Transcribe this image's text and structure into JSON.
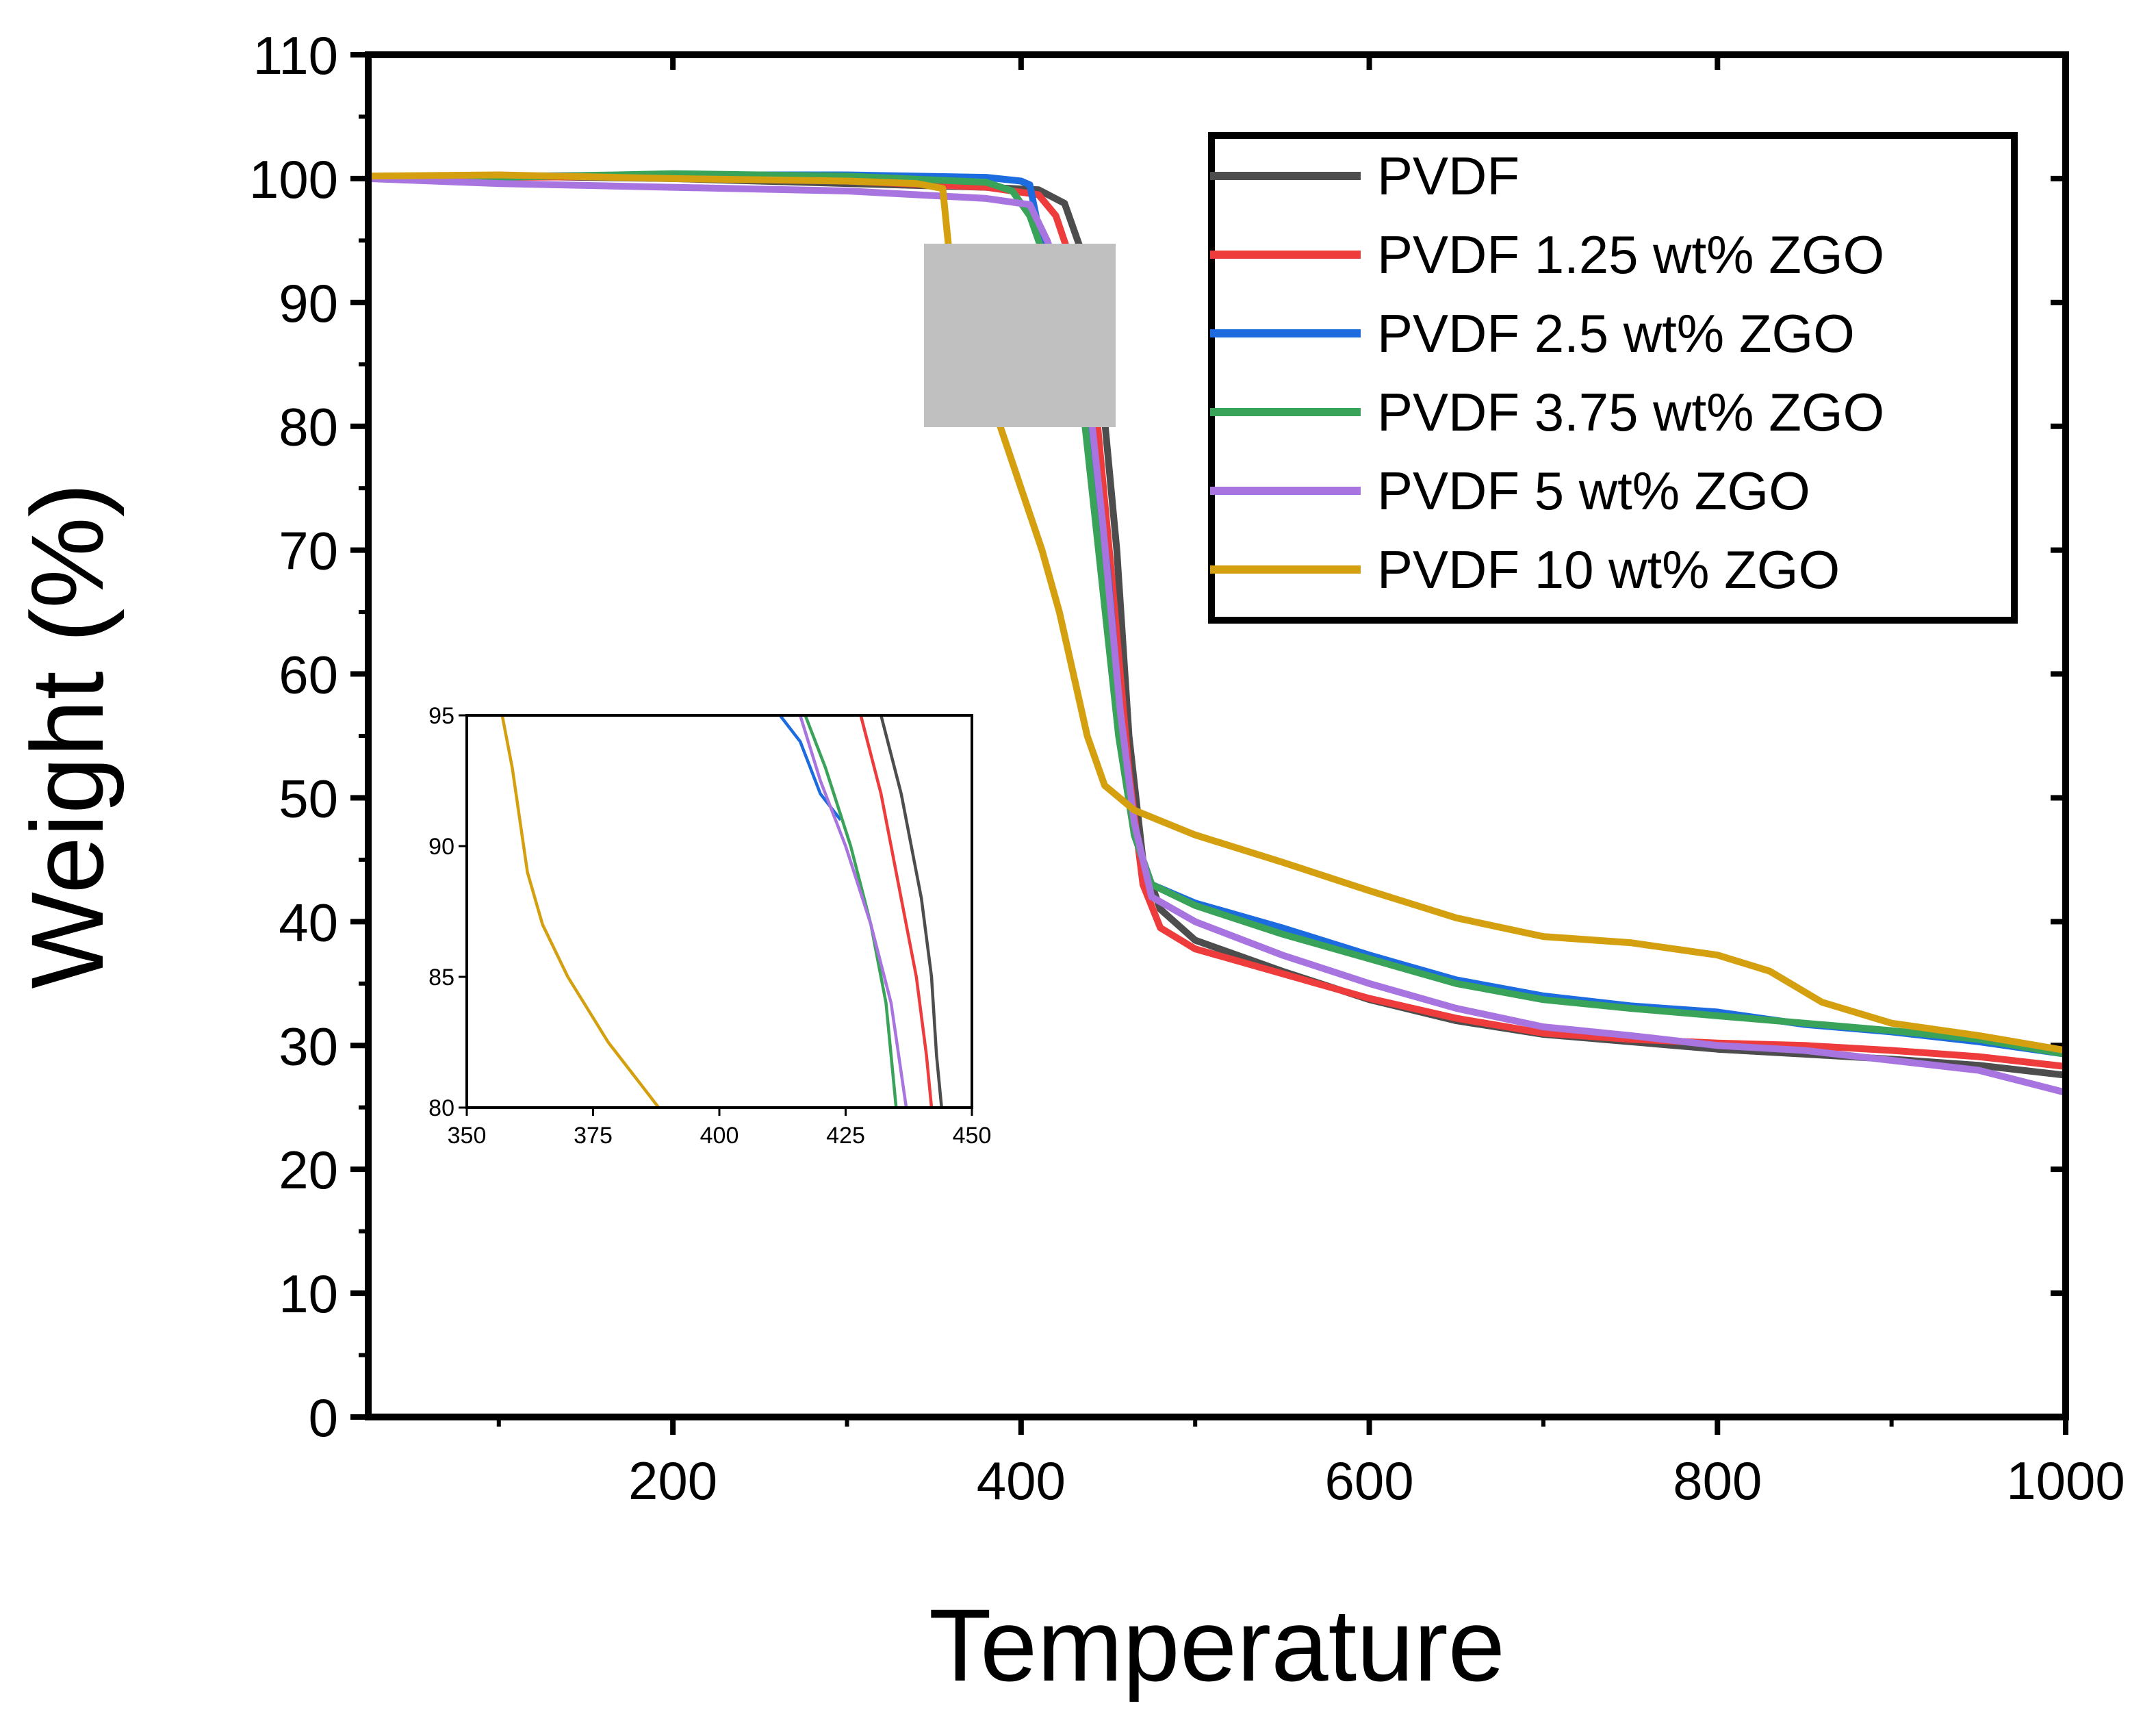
{
  "chart_data": {
    "type": "line",
    "xlabel": "Temperature",
    "ylabel": "Weight (%)",
    "xlim": [
      25,
      1000
    ],
    "ylim": [
      0,
      110
    ],
    "xticks": [
      200,
      400,
      600,
      800,
      1000
    ],
    "yticks": [
      0,
      10,
      20,
      30,
      40,
      50,
      60,
      70,
      80,
      90,
      100,
      110
    ],
    "grid": false,
    "legend_position": "top-right",
    "series": [
      {
        "name": "PVDF",
        "color": "#4d4d4d",
        "points": [
          [
            25,
            100
          ],
          [
            100,
            100.2
          ],
          [
            200,
            100
          ],
          [
            300,
            99.6
          ],
          [
            380,
            99.3
          ],
          [
            410,
            99.1
          ],
          [
            425,
            98
          ],
          [
            435,
            94
          ],
          [
            445,
            85
          ],
          [
            455,
            70
          ],
          [
            462,
            55
          ],
          [
            470,
            45
          ],
          [
            480,
            41
          ],
          [
            500,
            38.5
          ],
          [
            550,
            36
          ],
          [
            600,
            33.7
          ],
          [
            650,
            32
          ],
          [
            700,
            30.9
          ],
          [
            750,
            30.3
          ],
          [
            800,
            29.7
          ],
          [
            850,
            29.3
          ],
          [
            900,
            28.9
          ],
          [
            950,
            28.4
          ],
          [
            1000,
            27.6
          ]
        ]
      },
      {
        "name": "PVDF 1.25 wt% ZGO",
        "color": "#ee3b3b",
        "points": [
          [
            25,
            100
          ],
          [
            100,
            100.1
          ],
          [
            200,
            100.2
          ],
          [
            300,
            99.8
          ],
          [
            380,
            99.3
          ],
          [
            410,
            98.7
          ],
          [
            420,
            97
          ],
          [
            432,
            92
          ],
          [
            442,
            83
          ],
          [
            452,
            68
          ],
          [
            462,
            52
          ],
          [
            470,
            43
          ],
          [
            480,
            39.5
          ],
          [
            500,
            37.8
          ],
          [
            550,
            35.8
          ],
          [
            600,
            33.8
          ],
          [
            650,
            32.2
          ],
          [
            700,
            31
          ],
          [
            750,
            30.5
          ],
          [
            800,
            30.2
          ],
          [
            850,
            30
          ],
          [
            900,
            29.6
          ],
          [
            950,
            29.1
          ],
          [
            1000,
            28.3
          ]
        ]
      },
      {
        "name": "PVDF 2.5 wt% ZGO",
        "color": "#1c6ce0",
        "points": [
          [
            25,
            100
          ],
          [
            100,
            100.2
          ],
          [
            200,
            100.3
          ],
          [
            300,
            100.3
          ],
          [
            380,
            100.1
          ],
          [
            400,
            99.8
          ],
          [
            405,
            99.5
          ],
          [
            410,
            96
          ],
          [
            418,
            92
          ],
          [
            430,
            87
          ],
          [
            440,
            80
          ],
          [
            450,
            68
          ],
          [
            458,
            55
          ],
          [
            465,
            47
          ],
          [
            475,
            43
          ],
          [
            500,
            41.5
          ],
          [
            550,
            39.5
          ],
          [
            600,
            37.3
          ],
          [
            650,
            35.3
          ],
          [
            700,
            34
          ],
          [
            750,
            33.2
          ],
          [
            800,
            32.7
          ],
          [
            850,
            31.7
          ],
          [
            900,
            31.1
          ],
          [
            950,
            30.3
          ],
          [
            1000,
            29.3
          ]
        ]
      },
      {
        "name": "PVDF 3.75 wt% ZGO",
        "color": "#3aa35a",
        "points": [
          [
            25,
            100
          ],
          [
            100,
            100.1
          ],
          [
            200,
            100.4
          ],
          [
            300,
            100.2
          ],
          [
            380,
            99.7
          ],
          [
            395,
            99
          ],
          [
            405,
            97
          ],
          [
            415,
            93
          ],
          [
            428,
            89
          ],
          [
            436,
            81
          ],
          [
            446,
            68
          ],
          [
            456,
            55
          ],
          [
            465,
            47
          ],
          [
            475,
            43
          ],
          [
            500,
            41.3
          ],
          [
            550,
            39
          ],
          [
            600,
            37
          ],
          [
            650,
            35
          ],
          [
            700,
            33.7
          ],
          [
            750,
            33
          ],
          [
            800,
            32.4
          ],
          [
            850,
            31.8
          ],
          [
            900,
            31.2
          ],
          [
            950,
            30.5
          ],
          [
            1000,
            29.3
          ]
        ]
      },
      {
        "name": "PVDF 5 wt% ZGO",
        "color": "#a874e0",
        "points": [
          [
            25,
            100
          ],
          [
            100,
            99.6
          ],
          [
            200,
            99.3
          ],
          [
            300,
            99
          ],
          [
            380,
            98.4
          ],
          [
            405,
            97.9
          ],
          [
            415,
            95
          ],
          [
            425,
            91
          ],
          [
            437,
            85
          ],
          [
            447,
            72
          ],
          [
            457,
            57
          ],
          [
            465,
            48
          ],
          [
            475,
            42
          ],
          [
            500,
            40
          ],
          [
            550,
            37.3
          ],
          [
            600,
            35
          ],
          [
            650,
            33
          ],
          [
            700,
            31.5
          ],
          [
            750,
            30.8
          ],
          [
            800,
            30
          ],
          [
            850,
            29.6
          ],
          [
            900,
            28.8
          ],
          [
            950,
            28
          ],
          [
            1000,
            26.2
          ]
        ]
      },
      {
        "name": "PVDF 10 wt% ZGO",
        "color": "#d4a010",
        "points": [
          [
            25,
            100.2
          ],
          [
            100,
            100.3
          ],
          [
            200,
            100
          ],
          [
            300,
            99.8
          ],
          [
            340,
            99.6
          ],
          [
            355,
            99.2
          ],
          [
            358,
            95
          ],
          [
            362,
            90
          ],
          [
            372,
            85
          ],
          [
            388,
            80
          ],
          [
            400,
            75
          ],
          [
            412,
            70
          ],
          [
            422,
            65
          ],
          [
            430,
            60
          ],
          [
            438,
            55
          ],
          [
            448,
            51
          ],
          [
            465,
            49
          ],
          [
            500,
            47
          ],
          [
            550,
            44.8
          ],
          [
            600,
            42.5
          ],
          [
            650,
            40.3
          ],
          [
            700,
            38.8
          ],
          [
            750,
            38.3
          ],
          [
            800,
            37.3
          ],
          [
            830,
            36
          ],
          [
            860,
            33.5
          ],
          [
            900,
            31.8
          ],
          [
            950,
            30.8
          ],
          [
            1000,
            29.6
          ]
        ]
      }
    ],
    "inset": {
      "xlim": [
        350,
        450
      ],
      "ylim": [
        80,
        95
      ],
      "xticks": [
        350,
        375,
        400,
        425,
        450
      ],
      "yticks": [
        80,
        85,
        90,
        95
      ],
      "series": [
        {
          "name": "PVDF",
          "color": "#4d4d4d",
          "points": [
            [
              432,
              95
            ],
            [
              436,
              92
            ],
            [
              440,
              88
            ],
            [
              442,
              85
            ],
            [
              443,
              82
            ],
            [
              444,
              80
            ]
          ]
        },
        {
          "name": "PVDF 1.25 wt% ZGO",
          "color": "#ee3b3b",
          "points": [
            [
              428,
              95
            ],
            [
              432,
              92
            ],
            [
              436,
              88
            ],
            [
              439,
              85
            ],
            [
              441,
              82
            ],
            [
              442,
              80
            ]
          ]
        },
        {
          "name": "PVDF 2.5 wt% ZGO",
          "color": "#1c6ce0",
          "points": [
            [
              412,
              95
            ],
            [
              416,
              94
            ],
            [
              420,
              92
            ],
            [
              424,
              91
            ]
          ]
        },
        {
          "name": "PVDF 3.75 wt% ZGO",
          "color": "#3aa35a",
          "points": [
            [
              417,
              95
            ],
            [
              421,
              93
            ],
            [
              426,
              90
            ],
            [
              430,
              87
            ],
            [
              433,
              84
            ],
            [
              435,
              80
            ]
          ]
        },
        {
          "name": "PVDF 5 wt% ZGO",
          "color": "#a874e0",
          "points": [
            [
              416,
              95
            ],
            [
              420,
              92.5
            ],
            [
              425,
              90
            ],
            [
              430,
              87
            ],
            [
              434,
              84
            ],
            [
              437,
              80
            ]
          ]
        },
        {
          "name": "PVDF 10 wt% ZGO",
          "color": "#d4a010",
          "points": [
            [
              357,
              95
            ],
            [
              359,
              93
            ],
            [
              362,
              89
            ],
            [
              365,
              87
            ],
            [
              370,
              85
            ],
            [
              378,
              82.5
            ],
            [
              384,
              81
            ],
            [
              388,
              80
            ]
          ]
        }
      ]
    }
  }
}
